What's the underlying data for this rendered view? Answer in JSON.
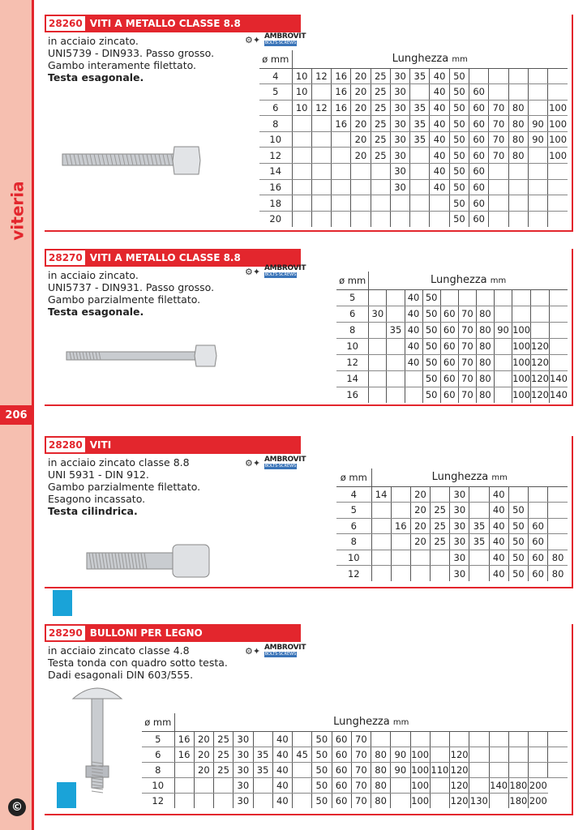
{
  "sidebar": {
    "category": "viteria",
    "page_number": "206",
    "copyright": "c"
  },
  "brand": {
    "name": "AMBROVIT",
    "tagline": "BOLTS·SCREWS"
  },
  "colors": {
    "accent": "#e3262d",
    "sidebar": "#f6bfb0"
  },
  "common": {
    "dia_label": "ø mm",
    "len_label": "Lunghezza",
    "len_unit": "mm"
  },
  "sections": [
    {
      "code": "28260",
      "title": "VITI A METALLO CLASSE 8.8",
      "lines": [
        "in acciaio zincato.",
        "UNI5739 - DIN933. Passo grosso.",
        "Gambo interamente filettato."
      ],
      "bold": "Testa esagonale.",
      "rows": [
        [
          "4",
          "10",
          "12",
          "16",
          "20",
          "25",
          "30",
          "35",
          "40",
          "50",
          "",
          "",
          "",
          "",
          ""
        ],
        [
          "5",
          "10",
          "",
          "16",
          "20",
          "25",
          "30",
          "",
          "40",
          "50",
          "60",
          "",
          "",
          "",
          ""
        ],
        [
          "6",
          "10",
          "12",
          "16",
          "20",
          "25",
          "30",
          "35",
          "40",
          "50",
          "60",
          "70",
          "80",
          "",
          "100"
        ],
        [
          "8",
          "",
          "",
          "16",
          "20",
          "25",
          "30",
          "35",
          "40",
          "50",
          "60",
          "70",
          "80",
          "90",
          "100"
        ],
        [
          "10",
          "",
          "",
          "",
          "20",
          "25",
          "30",
          "35",
          "40",
          "50",
          "60",
          "70",
          "80",
          "90",
          "100"
        ],
        [
          "12",
          "",
          "",
          "",
          "20",
          "25",
          "30",
          "",
          "40",
          "50",
          "60",
          "70",
          "80",
          "",
          "100"
        ],
        [
          "14",
          "",
          "",
          "",
          "",
          "",
          "30",
          "",
          "40",
          "50",
          "60",
          "",
          "",
          "",
          ""
        ],
        [
          "16",
          "",
          "",
          "",
          "",
          "",
          "30",
          "",
          "40",
          "50",
          "60",
          "",
          "",
          "",
          ""
        ],
        [
          "18",
          "",
          "",
          "",
          "",
          "",
          "",
          "",
          "",
          "50",
          "60",
          "",
          "",
          "",
          ""
        ],
        [
          "20",
          "",
          "",
          "",
          "",
          "",
          "",
          "",
          "",
          "50",
          "60",
          "",
          "",
          "",
          ""
        ]
      ]
    },
    {
      "code": "28270",
      "title": "VITI A METALLO CLASSE 8.8",
      "lines": [
        "in acciaio zincato.",
        "UNI5737 - DIN931. Passo grosso.",
        "Gambo parzialmente filettato."
      ],
      "bold": "Testa esagonale.",
      "rows": [
        [
          "5",
          "",
          "",
          "40",
          "50",
          "",
          "",
          "",
          "",
          "",
          "",
          ""
        ],
        [
          "6",
          "30",
          "",
          "40",
          "50",
          "60",
          "70",
          "80",
          "",
          "",
          "",
          ""
        ],
        [
          "8",
          "",
          "35",
          "40",
          "50",
          "60",
          "70",
          "80",
          "90",
          "100",
          "",
          ""
        ],
        [
          "10",
          "",
          "",
          "40",
          "50",
          "60",
          "70",
          "80",
          "",
          "100",
          "120",
          ""
        ],
        [
          "12",
          "",
          "",
          "40",
          "50",
          "60",
          "70",
          "80",
          "",
          "100",
          "120",
          ""
        ],
        [
          "14",
          "",
          "",
          "",
          "50",
          "60",
          "70",
          "80",
          "",
          "100",
          "120",
          "140"
        ],
        [
          "16",
          "",
          "",
          "",
          "50",
          "60",
          "70",
          "80",
          "",
          "100",
          "120",
          "140"
        ]
      ]
    },
    {
      "code": "28280",
      "title": "VITI",
      "lines": [
        "in acciaio zincato classe 8.8",
        "UNI 5931 - DIN 912.",
        "Gambo parzialmente filettato.",
        "Esagono incassato."
      ],
      "bold": "Testa cilindrica.",
      "rows": [
        [
          "4",
          "14",
          "",
          "20",
          "",
          "30",
          "",
          "40",
          "",
          "",
          ""
        ],
        [
          "5",
          "",
          "",
          "20",
          "25",
          "30",
          "",
          "40",
          "50",
          "",
          ""
        ],
        [
          "6",
          "",
          "16",
          "20",
          "25",
          "30",
          "35",
          "40",
          "50",
          "60",
          ""
        ],
        [
          "8",
          "",
          "",
          "20",
          "25",
          "30",
          "35",
          "40",
          "50",
          "60",
          ""
        ],
        [
          "10",
          "",
          "",
          "",
          "",
          "30",
          "",
          "40",
          "50",
          "60",
          "80"
        ],
        [
          "12",
          "",
          "",
          "",
          "",
          "30",
          "",
          "40",
          "50",
          "60",
          "80"
        ]
      ]
    },
    {
      "code": "28290",
      "title": "BULLONI PER LEGNO",
      "lines": [
        "in acciaio zincato classe 4.8",
        "Testa tonda con quadro sotto testa.",
        "Dadi esagonali  DIN 603/555."
      ],
      "bold": "",
      "rows": [
        [
          "5",
          "16",
          "20",
          "25",
          "30",
          "",
          "40",
          "",
          "50",
          "60",
          "70",
          "",
          "",
          "",
          "",
          "",
          "",
          "",
          "",
          "",
          ""
        ],
        [
          "6",
          "16",
          "20",
          "25",
          "30",
          "35",
          "40",
          "45",
          "50",
          "60",
          "70",
          "80",
          "90",
          "100",
          "",
          "120",
          "",
          "",
          "",
          "",
          ""
        ],
        [
          "8",
          "",
          "20",
          "25",
          "30",
          "35",
          "40",
          "",
          "50",
          "60",
          "70",
          "80",
          "90",
          "100",
          "110",
          "120",
          "",
          "",
          "",
          "",
          ""
        ],
        [
          "10",
          "",
          "",
          "",
          "30",
          "",
          "40",
          "",
          "50",
          "60",
          "70",
          "80",
          "",
          "100",
          "",
          "120",
          "",
          "140",
          "180",
          "200"
        ],
        [
          "12",
          "",
          "",
          "",
          "30",
          "",
          "40",
          "",
          "50",
          "60",
          "70",
          "80",
          "",
          "100",
          "",
          "120",
          "130",
          "",
          "180",
          "200"
        ]
      ]
    }
  ]
}
